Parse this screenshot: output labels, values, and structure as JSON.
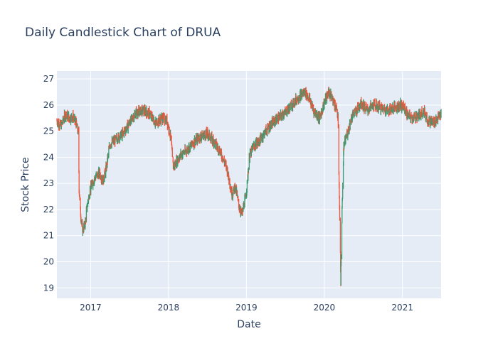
{
  "chart_data": {
    "type": "candlestick",
    "title": "Daily Candlestick Chart of DRUA",
    "xlabel": "Date",
    "ylabel": "Stock Price",
    "ylim": [
      18.6,
      27.3
    ],
    "xlim": [
      "2016-07-27",
      "2021-07-01"
    ],
    "y_ticks": [
      19,
      20,
      21,
      22,
      23,
      24,
      25,
      26,
      27
    ],
    "x_ticks": [
      {
        "label": "2017",
        "date": "2017-01-01"
      },
      {
        "label": "2018",
        "date": "2018-01-01"
      },
      {
        "label": "2019",
        "date": "2019-01-01"
      },
      {
        "label": "2020",
        "date": "2020-01-01"
      },
      {
        "label": "2021",
        "date": "2021-01-01"
      }
    ],
    "grid": true,
    "colors": {
      "increasing": "#3d9970",
      "decreasing": "#ef553b",
      "background": "#e5ecf6",
      "grid": "#ffffff",
      "text": "#2a3f5f"
    },
    "price_path": [
      [
        "2016-07-27",
        25.4
      ],
      [
        "2016-08-15",
        25.2
      ],
      [
        "2016-09-05",
        25.65
      ],
      [
        "2016-09-25",
        25.5
      ],
      [
        "2016-10-10",
        25.55
      ],
      [
        "2016-10-25",
        25.3
      ],
      [
        "2016-11-05",
        24.9
      ],
      [
        "2016-11-08",
        22.8
      ],
      [
        "2016-11-15",
        21.8
      ],
      [
        "2016-11-25",
        21.2
      ],
      [
        "2016-12-05",
        21.4
      ],
      [
        "2016-12-15",
        22.1
      ],
      [
        "2016-12-31",
        22.8
      ],
      [
        "2017-01-20",
        23.2
      ],
      [
        "2017-02-10",
        23.4
      ],
      [
        "2017-03-01",
        23.1
      ],
      [
        "2017-03-15",
        23.6
      ],
      [
        "2017-04-01",
        24.5
      ],
      [
        "2017-05-01",
        24.7
      ],
      [
        "2017-06-01",
        24.9
      ],
      [
        "2017-07-01",
        25.3
      ],
      [
        "2017-08-01",
        25.7
      ],
      [
        "2017-09-01",
        25.8
      ],
      [
        "2017-10-01",
        25.7
      ],
      [
        "2017-11-01",
        25.3
      ],
      [
        "2017-12-01",
        25.5
      ],
      [
        "2017-12-25",
        25.4
      ],
      [
        "2018-01-10",
        24.8
      ],
      [
        "2018-01-25",
        23.6
      ],
      [
        "2018-02-10",
        23.9
      ],
      [
        "2018-03-01",
        24.1
      ],
      [
        "2018-04-01",
        24.3
      ],
      [
        "2018-05-01",
        24.6
      ],
      [
        "2018-06-01",
        24.8
      ],
      [
        "2018-07-01",
        24.9
      ],
      [
        "2018-08-01",
        24.6
      ],
      [
        "2018-09-01",
        24.2
      ],
      [
        "2018-10-01",
        23.6
      ],
      [
        "2018-10-25",
        22.6
      ],
      [
        "2018-11-10",
        22.9
      ],
      [
        "2018-11-25",
        22.2
      ],
      [
        "2018-12-10",
        21.8
      ],
      [
        "2018-12-31",
        22.6
      ],
      [
        "2019-01-15",
        24.0
      ],
      [
        "2019-02-01",
        24.4
      ],
      [
        "2019-03-01",
        24.6
      ],
      [
        "2019-04-01",
        25.0
      ],
      [
        "2019-05-01",
        25.3
      ],
      [
        "2019-06-01",
        25.5
      ],
      [
        "2019-07-01",
        25.7
      ],
      [
        "2019-08-01",
        26.0
      ],
      [
        "2019-09-01",
        26.3
      ],
      [
        "2019-10-01",
        26.5
      ],
      [
        "2019-10-25",
        26.2
      ],
      [
        "2019-11-10",
        25.8
      ],
      [
        "2019-12-10",
        25.5
      ],
      [
        "2020-01-01",
        26.1
      ],
      [
        "2020-01-20",
        26.5
      ],
      [
        "2020-02-10",
        26.2
      ],
      [
        "2020-02-25",
        25.9
      ],
      [
        "2020-03-05",
        25.5
      ],
      [
        "2020-03-10",
        23.0
      ],
      [
        "2020-03-18",
        19.3
      ],
      [
        "2020-03-24",
        22.0
      ],
      [
        "2020-04-01",
        24.4
      ],
      [
        "2020-04-20",
        25.0
      ],
      [
        "2020-05-10",
        25.6
      ],
      [
        "2020-06-01",
        25.8
      ],
      [
        "2020-06-20",
        26.1
      ],
      [
        "2020-07-20",
        25.8
      ],
      [
        "2020-08-20",
        26.0
      ],
      [
        "2020-09-20",
        25.9
      ],
      [
        "2020-10-20",
        25.8
      ],
      [
        "2020-11-20",
        25.9
      ],
      [
        "2020-12-20",
        26.0
      ],
      [
        "2021-01-10",
        25.9
      ],
      [
        "2021-01-25",
        25.6
      ],
      [
        "2021-02-20",
        25.5
      ],
      [
        "2021-03-20",
        25.6
      ],
      [
        "2021-04-10",
        25.8
      ],
      [
        "2021-04-30",
        25.4
      ],
      [
        "2021-05-30",
        25.35
      ],
      [
        "2021-06-15",
        25.5
      ],
      [
        "2021-07-01",
        25.65
      ]
    ]
  }
}
